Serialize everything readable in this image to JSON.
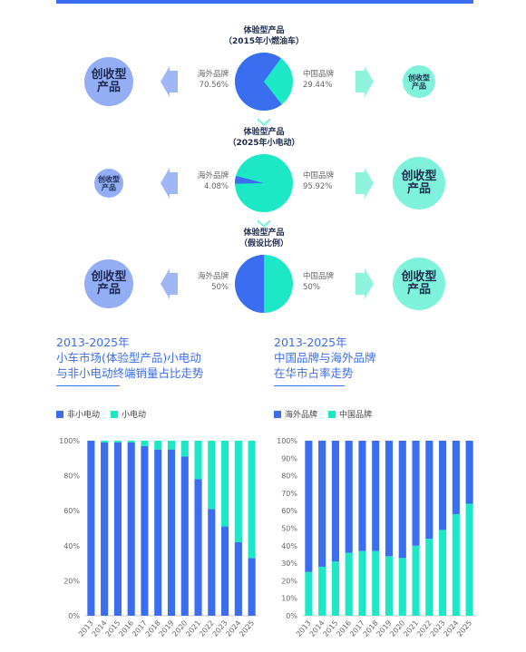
{
  "colors": {
    "blue": "#3b6df0",
    "teal": "#1de8c6",
    "circle_blue": "#93aef5",
    "circle_teal": "#7ff2dc",
    "arrow_blue": "#9fb6f5",
    "arrow_teal": "#8ff3de"
  },
  "pies": [
    {
      "title_line1": "体验型产品",
      "title_line2": "（2015年小燃油车）",
      "left_label": "海外品牌",
      "left_pct": "70.56%",
      "right_label": "中国品牌",
      "right_pct": "29.44%",
      "overseas_share": 70.56,
      "left_circle": "创收型\n产品",
      "right_circle": "创收型\n产品",
      "left_size": "large",
      "right_size": "small"
    },
    {
      "title_line1": "体验型产品",
      "title_line2": "（2025年小电动）",
      "left_label": "海外品牌",
      "left_pct": "4.08%",
      "right_label": "中国品牌",
      "right_pct": "95.92%",
      "overseas_share": 4.08,
      "left_circle": "创收型\n产品",
      "right_circle": "创收型\n产品",
      "left_size": "small",
      "right_size": "large"
    },
    {
      "title_line1": "体验型产品",
      "title_line2": "（假设比例）",
      "left_label": "海外品牌",
      "left_pct": "50%",
      "right_label": "中国品牌",
      "right_pct": "50%",
      "overseas_share": 50,
      "left_circle": "创收型\n产品",
      "right_circle": "创收型\n产品",
      "left_size": "large",
      "right_size": "large"
    }
  ],
  "left_section": {
    "title": "2013-2025年\n小车市场(体验型产品)小电动\n与非小电动终端销量占比走势"
  },
  "right_section": {
    "title": "2013-2025年\n中国品牌与海外品牌\n在华市占率走势"
  },
  "chart_data": [
    {
      "type": "bar",
      "stacked": true,
      "categories": [
        "2013",
        "2014",
        "2015",
        "2016",
        "2017",
        "2018",
        "2019",
        "2020",
        "2021",
        "2022",
        "2023",
        "2024",
        "2025"
      ],
      "series": [
        {
          "name": "非小电动",
          "values": [
            100,
            99,
            99,
            99,
            97,
            95,
            95,
            91,
            78,
            61,
            51,
            42,
            33
          ]
        },
        {
          "name": "小电动",
          "values": [
            0,
            1,
            1,
            1,
            3,
            5,
            5,
            9,
            22,
            39,
            49,
            58,
            67
          ]
        }
      ],
      "y_ticks": [
        "0%",
        "20%",
        "40%",
        "60%",
        "80%",
        "100%"
      ],
      "ylim": [
        0,
        100
      ],
      "legend": "top-left",
      "grid": false
    },
    {
      "type": "bar",
      "stacked": true,
      "categories": [
        "2013",
        "2014",
        "2015",
        "2016",
        "2017",
        "2018",
        "2019",
        "2020",
        "2021",
        "2022",
        "2023",
        "2024",
        "2025"
      ],
      "series": [
        {
          "name": "海外品牌",
          "values": [
            75,
            72,
            69,
            64,
            63,
            63,
            66,
            67,
            60,
            56,
            51,
            42,
            36
          ]
        },
        {
          "name": "中国品牌",
          "values": [
            25,
            28,
            31,
            36,
            37,
            37,
            34,
            33,
            40,
            44,
            49,
            58,
            64
          ]
        }
      ],
      "y_ticks": [
        "0%",
        "10%",
        "20%",
        "30%",
        "40%",
        "50%",
        "60%",
        "70%",
        "80%",
        "90%",
        "100%"
      ],
      "ylim": [
        0,
        100
      ],
      "legend": "top-left",
      "grid": false
    }
  ]
}
